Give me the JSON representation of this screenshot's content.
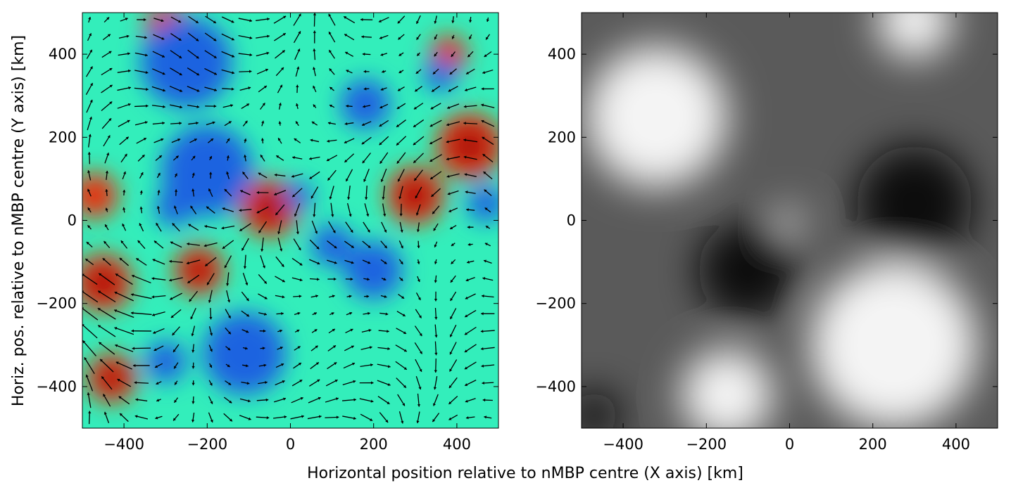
{
  "figure": {
    "xlabel": "Horizontal position relative to nMBP centre (X axis) [km]",
    "ylabel": "Horiz. pos. relative to nMBP centre (Y axis) [km]"
  },
  "chart_data": [
    {
      "type": "heatmap",
      "panel": "left",
      "title": "",
      "colormap": "jet",
      "overlay": "velocity arrows (quiver)",
      "xlim": [
        -500,
        500
      ],
      "ylim": [
        -500,
        500
      ],
      "x_ticks": [
        -400,
        -200,
        0,
        200,
        400
      ],
      "y_ticks": [
        -400,
        -200,
        0,
        200,
        400
      ],
      "x_tick_labels": [
        "−400",
        "−200",
        "0",
        "200",
        "400"
      ],
      "y_tick_labels": [
        "−400",
        "−200",
        "0",
        "200",
        "400"
      ],
      "features": [
        {
          "kind": "high",
          "x": -450,
          "y": -150,
          "r": 70
        },
        {
          "kind": "high",
          "x": -430,
          "y": -380,
          "r": 60
        },
        {
          "kind": "high",
          "x": -470,
          "y": 60,
          "r": 55
        },
        {
          "kind": "high",
          "x": -50,
          "y": 30,
          "r": 70
        },
        {
          "kind": "high",
          "x": 300,
          "y": 60,
          "r": 70
        },
        {
          "kind": "high",
          "x": 430,
          "y": 180,
          "r": 80
        },
        {
          "kind": "high",
          "x": 380,
          "y": 400,
          "r": 45
        },
        {
          "kind": "high",
          "x": -220,
          "y": -120,
          "r": 60
        },
        {
          "kind": "high",
          "x": -300,
          "y": 470,
          "r": 50
        },
        {
          "kind": "low",
          "x": -250,
          "y": 380,
          "r": 110
        },
        {
          "kind": "low",
          "x": -200,
          "y": 120,
          "r": 110
        },
        {
          "kind": "low",
          "x": -280,
          "y": 30,
          "r": 45
        },
        {
          "kind": "low",
          "x": -110,
          "y": -320,
          "r": 100
        },
        {
          "kind": "low",
          "x": -300,
          "y": -340,
          "r": 50
        },
        {
          "kind": "low",
          "x": 200,
          "y": -120,
          "r": 70
        },
        {
          "kind": "low",
          "x": 470,
          "y": 40,
          "r": 45
        },
        {
          "kind": "low",
          "x": 360,
          "y": 350,
          "r": 40
        },
        {
          "kind": "low",
          "x": 180,
          "y": 280,
          "r": 60
        },
        {
          "kind": "low",
          "x": 20,
          "y": 60,
          "r": 35
        },
        {
          "kind": "low",
          "x": 100,
          "y": -60,
          "r": 50
        }
      ]
    },
    {
      "type": "heatmap",
      "panel": "right",
      "title": "",
      "colormap": "gray",
      "xlim": [
        -500,
        500
      ],
      "ylim": [
        -500,
        500
      ],
      "x_ticks": [
        -400,
        -200,
        0,
        200,
        400
      ],
      "y_ticks": [
        -400,
        -200,
        0,
        200,
        400
      ],
      "x_tick_labels": [
        "−400",
        "−200",
        "0",
        "200",
        "400"
      ],
      "y_tick_labels": [
        "−400",
        "−200",
        "0",
        "200",
        "400"
      ],
      "features": [
        {
          "kind": "bright",
          "x": -320,
          "y": 250,
          "r": 170
        },
        {
          "kind": "bright",
          "x": 300,
          "y": 480,
          "r": 90
        },
        {
          "kind": "bright",
          "x": 250,
          "y": -300,
          "r": 200
        },
        {
          "kind": "bright",
          "x": -150,
          "y": -420,
          "r": 110
        },
        {
          "kind": "bright",
          "x": 0,
          "y": 0,
          "r": 30
        },
        {
          "kind": "dark",
          "x": 300,
          "y": 40,
          "r": 140
        },
        {
          "kind": "dark",
          "x": -100,
          "y": -120,
          "r": 120
        },
        {
          "kind": "dark",
          "x": -470,
          "y": -470,
          "r": 60
        }
      ]
    }
  ]
}
